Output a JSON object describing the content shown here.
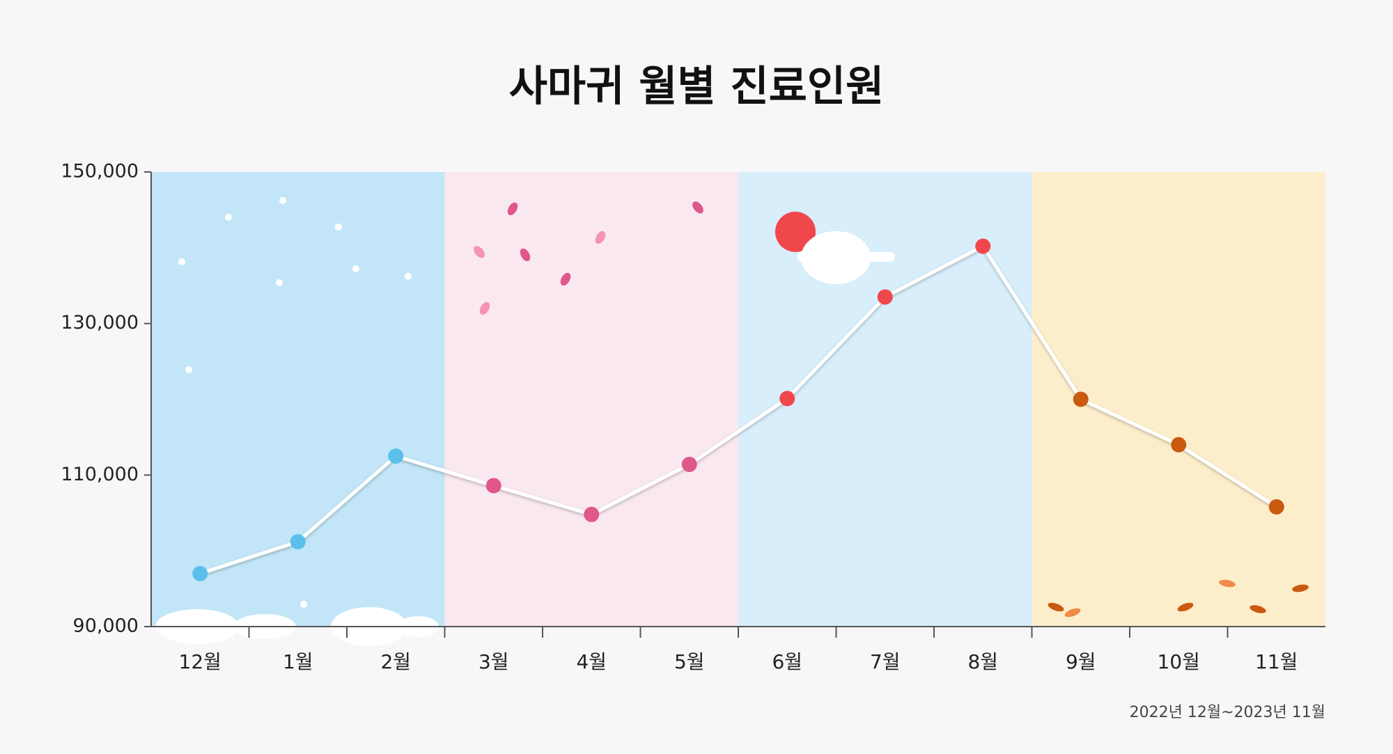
{
  "chart_data": {
    "type": "line",
    "title": "사마귀 월별 진료인원",
    "note": "2022년 12월~2023년 11월",
    "categories": [
      "12월",
      "1월",
      "2월",
      "3월",
      "4월",
      "5월",
      "6월",
      "7월",
      "8월",
      "9월",
      "10월",
      "11월"
    ],
    "values": [
      97000,
      101200,
      112500,
      108600,
      104800,
      111400,
      120100,
      133500,
      140200,
      120000,
      114000,
      105800
    ],
    "point_colors": [
      "#5bbfec",
      "#5bbfec",
      "#5bbfec",
      "#e0578a",
      "#e0578a",
      "#e0578a",
      "#f0474d",
      "#f0474d",
      "#f0474d",
      "#c95a10",
      "#c95a10",
      "#c95a10"
    ],
    "line_color": "#ffffff",
    "ylim": [
      90000,
      150000
    ],
    "yticks": [
      {
        "value": 90000,
        "label": "90,000"
      },
      {
        "value": 110000,
        "label": "110,000"
      },
      {
        "value": 130000,
        "label": "130,000"
      },
      {
        "value": 150000,
        "label": "150,000"
      }
    ]
  }
}
